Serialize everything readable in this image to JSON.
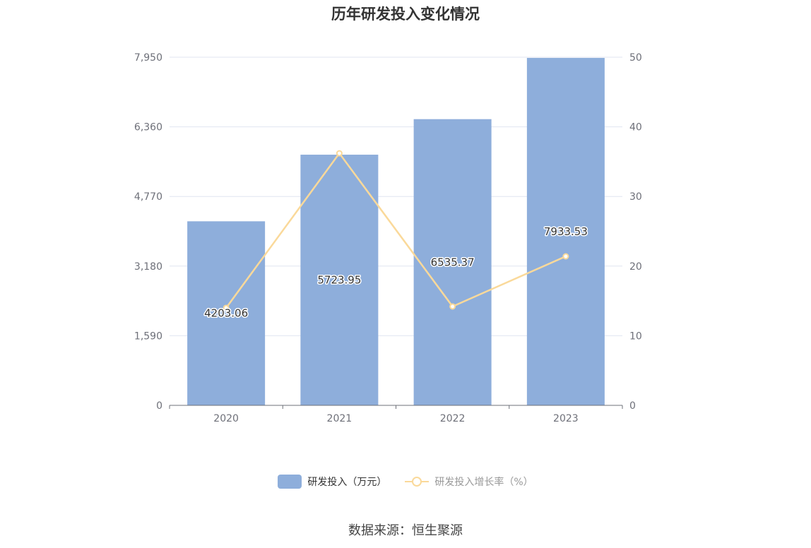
{
  "chart_data": {
    "type": "bar",
    "title": "历年研发投入变化情况",
    "categories": [
      "2020",
      "2021",
      "2022",
      "2023"
    ],
    "series": [
      {
        "name": "研发投入（万元）",
        "type": "bar",
        "axis": "left",
        "values": [
          4203.06,
          5723.95,
          6535.37,
          7933.53
        ],
        "labels": [
          "4203.06",
          "5723.95",
          "6535.37",
          "7933.53"
        ],
        "color": "#8eaedb"
      },
      {
        "name": "研发投入增长率（%）",
        "type": "line",
        "axis": "right",
        "values": [
          14.0,
          36.2,
          14.2,
          21.4
        ],
        "color": "#fad99a"
      }
    ],
    "left_axis": {
      "ticks": [
        "0",
        "1,590",
        "3,180",
        "4,770",
        "6,360",
        "7,950"
      ],
      "range": [
        0,
        7950
      ]
    },
    "right_axis": {
      "ticks": [
        "0",
        "10",
        "20",
        "30",
        "40",
        "50"
      ],
      "range": [
        0,
        50
      ]
    },
    "grid": true,
    "legend_position": "bottom"
  },
  "source": "数据来源：恒生聚源",
  "colors": {
    "bar": "#8eaedb",
    "line": "#fad99a",
    "grid": "#e0e6f1",
    "axis_text": "#6e7079"
  }
}
